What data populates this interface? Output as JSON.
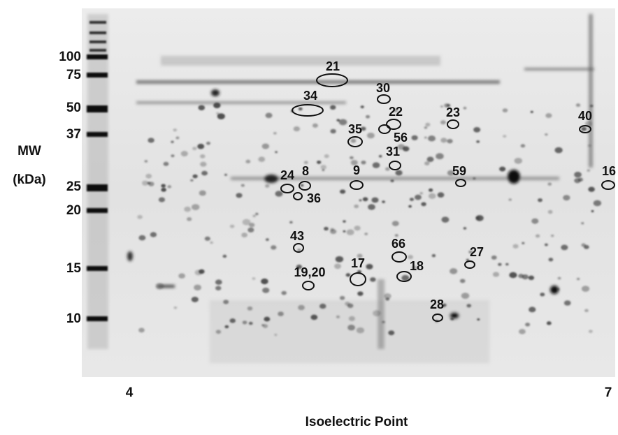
{
  "axis": {
    "y_title": [
      "MW",
      "(kDa)"
    ],
    "y_labels": [
      "100",
      "75",
      "50",
      "37",
      "25",
      "20",
      "15",
      "10"
    ],
    "x_labels": [
      "4",
      "7"
    ],
    "x_title": "Isoelectric Point"
  },
  "spots": [
    "21",
    "34",
    "30",
    "22",
    "56",
    "35",
    "23",
    "40",
    "31",
    "9",
    "59",
    "16",
    "24",
    "8",
    "36",
    "43",
    "66",
    "27",
    "18",
    "17",
    "19,20",
    "28"
  ]
}
